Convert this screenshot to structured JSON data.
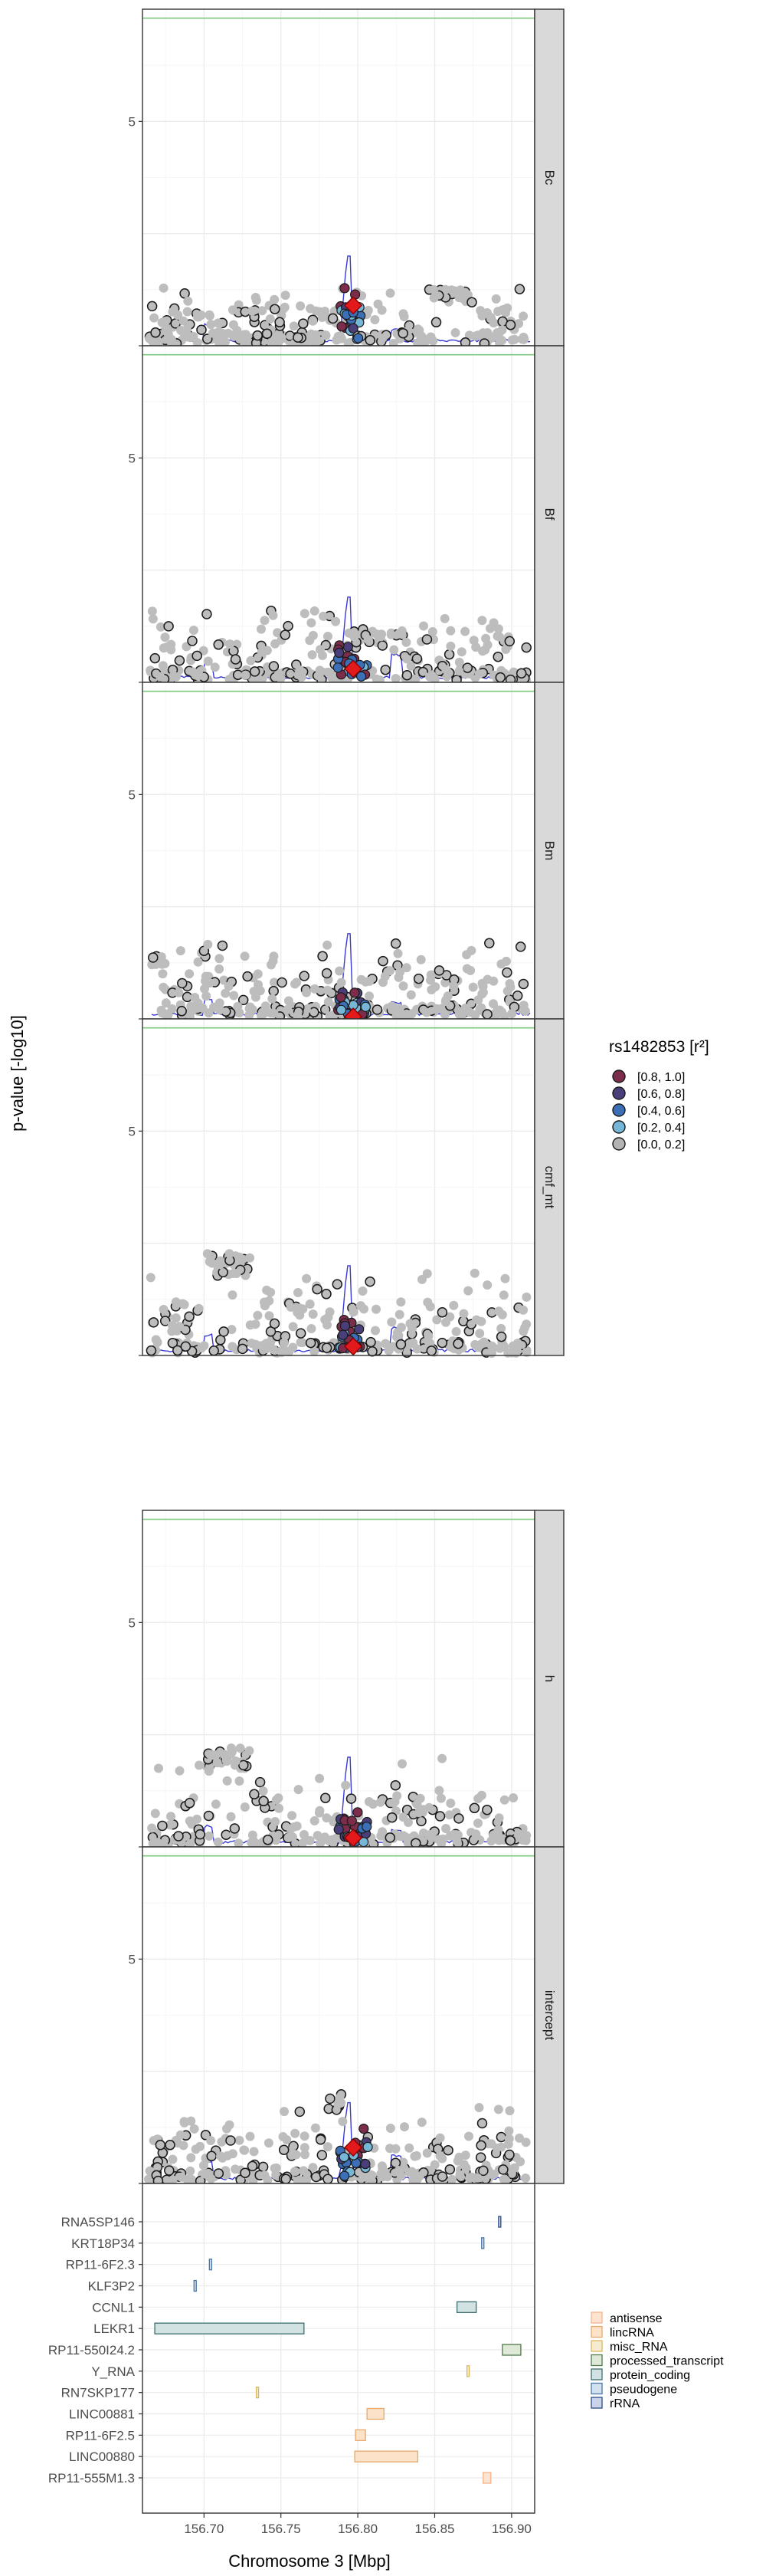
{
  "chart_data": {
    "type": "scatter",
    "layout": "faceted-locuszoom",
    "y_axis_title": "p-value [-log10]",
    "x_axis_title": "Chromosome 3 [Mbp]",
    "x_range": [
      156.66,
      156.915
    ],
    "x_ticks": [
      "156.70",
      "156.75",
      "156.80",
      "156.85",
      "156.90"
    ],
    "x_tick_values": [
      156.7,
      156.75,
      156.8,
      156.85,
      156.9
    ],
    "y_ticks": [
      5
    ],
    "lead_snp_mbp": 156.797,
    "panels": [
      {
        "name": "Bc",
        "ylim": [
          0,
          7.5
        ],
        "threshold": 7.3,
        "seed": 11,
        "base_hi": 0.9,
        "high_cluster": {
          "from": 156.845,
          "to": 156.875,
          "level": 1.2
        },
        "peak": 2.0,
        "lead": 0.9
      },
      {
        "name": "Bf",
        "ylim": [
          0,
          7.5
        ],
        "threshold": 7.3,
        "seed": 23,
        "base_hi": 1.2,
        "high_cluster": {
          "from": 156.795,
          "to": 156.83,
          "level": 1.1
        },
        "peak": 1.9,
        "lead": 0.3
      },
      {
        "name": "Bm",
        "ylim": [
          0,
          7.5
        ],
        "threshold": 7.3,
        "seed": 37,
        "base_hi": 1.3,
        "high_cluster": {
          "from": 156.665,
          "to": 156.675,
          "level": 1.4
        },
        "peak": 1.9,
        "lead": 0.05
      },
      {
        "name": "cmf_mt",
        "ylim": [
          0,
          7.5
        ],
        "threshold": 7.3,
        "seed": 41,
        "base_hi": 1.5,
        "high_cluster": {
          "from": 156.7,
          "to": 156.73,
          "level": 2.2
        },
        "peak": 2.0,
        "lead": 0.2
      },
      {
        "name": "h",
        "ylim": [
          0,
          7.5
        ],
        "threshold": 7.3,
        "seed": 53,
        "base_hi": 1.6,
        "high_cluster": {
          "from": 156.7,
          "to": 156.73,
          "level": 2.1
        },
        "peak": 2.0,
        "lead": 0.2
      },
      {
        "name": "intercept",
        "ylim": [
          0,
          7.5
        ],
        "threshold": 7.3,
        "seed": 67,
        "base_hi": 1.3,
        "high_cluster": {
          "from": 156.78,
          "to": 156.79,
          "level": 1.9
        },
        "peak": 1.8,
        "lead": 0.8
      }
    ],
    "ld_legend": {
      "title": "rs1482853 [r²]",
      "entries": [
        {
          "label": "[0.8, 1.0]",
          "color": "#7b2d4b"
        },
        {
          "label": "[0.6, 0.8]",
          "color": "#4b3f7b"
        },
        {
          "label": "[0.4, 0.6]",
          "color": "#3b6fb6"
        },
        {
          "label": "[0.2, 0.4]",
          "color": "#76b7d8"
        },
        {
          "label": "[0.0, 0.2]",
          "color": "#b4b4b4"
        }
      ]
    },
    "genes": [
      {
        "name": "RNA5SP146",
        "start": 156.8915,
        "end": 156.8925,
        "biotype": "rRNA"
      },
      {
        "name": "KRT18P34",
        "start": 156.8805,
        "end": 156.8815,
        "biotype": "pseudogene"
      },
      {
        "name": "RP11-6F2.3",
        "start": 156.7035,
        "end": 156.7045,
        "biotype": "pseudogene"
      },
      {
        "name": "KLF3P2",
        "start": 156.6935,
        "end": 156.6945,
        "biotype": "pseudogene"
      },
      {
        "name": "CCNL1",
        "start": 156.8645,
        "end": 156.877,
        "biotype": "protein_coding"
      },
      {
        "name": "LEKR1",
        "start": 156.668,
        "end": 156.765,
        "biotype": "protein_coding"
      },
      {
        "name": "RP11-550I24.2",
        "start": 156.894,
        "end": 156.906,
        "biotype": "processed_transcript"
      },
      {
        "name": "Y_RNA",
        "start": 156.871,
        "end": 156.872,
        "biotype": "misc_RNA"
      },
      {
        "name": "RN7SKP177",
        "start": 156.734,
        "end": 156.735,
        "biotype": "misc_RNA"
      },
      {
        "name": "LINC00881",
        "start": 156.806,
        "end": 156.817,
        "biotype": "lincRNA"
      },
      {
        "name": "RP11-6F2.5",
        "start": 156.7985,
        "end": 156.805,
        "biotype": "lincRNA"
      },
      {
        "name": "LINC00880",
        "start": 156.798,
        "end": 156.839,
        "biotype": "lincRNA"
      },
      {
        "name": "RP11-555M1.3",
        "start": 156.8815,
        "end": 156.8865,
        "biotype": "antisense"
      }
    ],
    "biotype_legend": [
      {
        "label": "antisense",
        "fill": "#fde3d0",
        "stroke": "#f3b38b"
      },
      {
        "label": "lincRNA",
        "fill": "#fbe2c8",
        "stroke": "#e8a96b"
      },
      {
        "label": "misc_RNA",
        "fill": "#f5ecd0",
        "stroke": "#d8b85e"
      },
      {
        "label": "processed_transcript",
        "fill": "#dde9d6",
        "stroke": "#4f7a4a"
      },
      {
        "label": "protein_coding",
        "fill": "#d2e2e2",
        "stroke": "#3e6f6f"
      },
      {
        "label": "pseudogene",
        "fill": "#d3e1ee",
        "stroke": "#4a76a8"
      },
      {
        "label": "rRNA",
        "fill": "#c9d4e8",
        "stroke": "#2a4a8a"
      }
    ]
  }
}
